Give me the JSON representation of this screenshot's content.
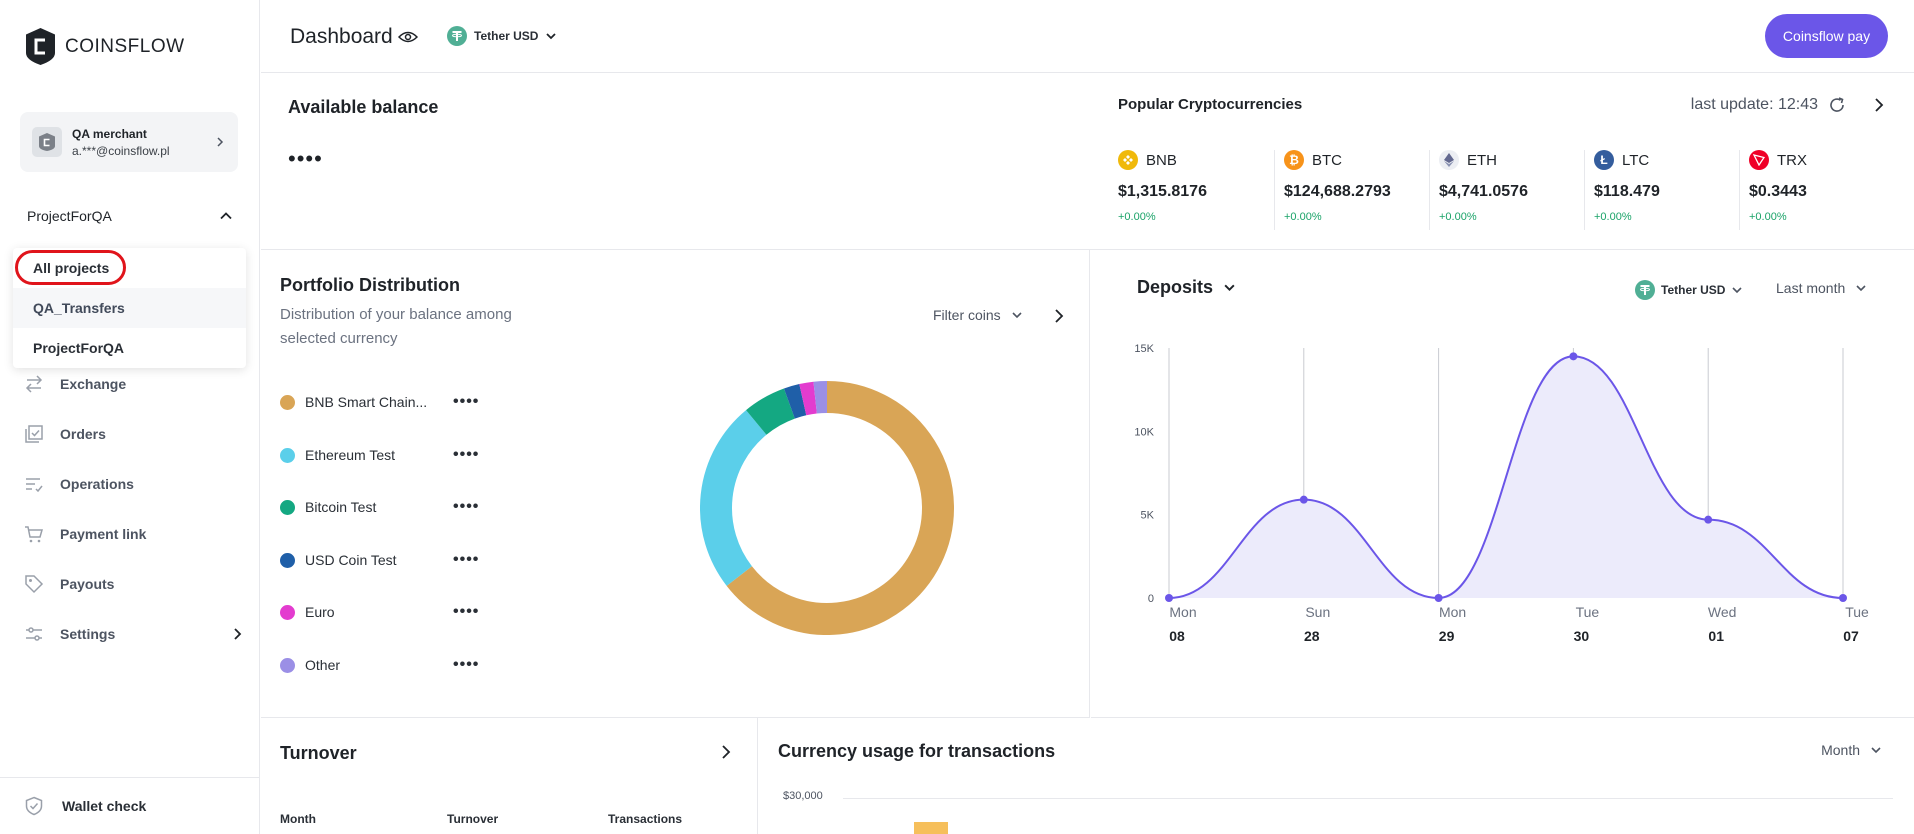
{
  "app": {
    "logo_text": "COINSFLOW"
  },
  "merchant": {
    "name": "QA merchant",
    "email": "a.***@coinsflow.pl"
  },
  "project_selector": {
    "current": "ProjectForQA",
    "options": [
      "All projects",
      "QA_Transfers",
      "ProjectForQA"
    ]
  },
  "nav": {
    "items": [
      {
        "label": "Exchange",
        "icon": "exchange-icon"
      },
      {
        "label": "Orders",
        "icon": "orders-icon"
      },
      {
        "label": "Operations",
        "icon": "operations-icon"
      },
      {
        "label": "Payment link",
        "icon": "cart-icon"
      },
      {
        "label": "Payouts",
        "icon": "tag-icon"
      },
      {
        "label": "Settings",
        "icon": "settings-icon"
      }
    ],
    "wallet_check": "Wallet check"
  },
  "header": {
    "title": "Dashboard",
    "currency": "Tether USD",
    "pay_button": "Coinsflow pay"
  },
  "balance": {
    "title": "Available balance",
    "value": "••••"
  },
  "popular": {
    "title": "Popular Cryptocurrencies",
    "last_update": "last update: 12:43",
    "coins": [
      {
        "symbol": "BNB",
        "price": "$1,315.8176",
        "change": "+0.00%",
        "color": "#f0b90b"
      },
      {
        "symbol": "BTC",
        "price": "$124,688.2793",
        "change": "+0.00%",
        "color": "#f7931a"
      },
      {
        "symbol": "ETH",
        "price": "$4,741.0576",
        "change": "+0.00%",
        "color": "#62688f"
      },
      {
        "symbol": "LTC",
        "price": "$118.479",
        "change": "+0.00%",
        "color": "#345d9d"
      },
      {
        "symbol": "TRX",
        "price": "$0.3443",
        "change": "+0.00%",
        "color": "#ef0027"
      }
    ]
  },
  "portfolio": {
    "title": "Portfolio Distribution",
    "subtitle": "Distribution of your balance among selected currency",
    "filter_label": "Filter coins",
    "legend": [
      {
        "name": "BNB Smart Chain...",
        "value": "••••",
        "color": "#d9a556"
      },
      {
        "name": "Ethereum Test",
        "value": "••••",
        "color": "#5bcfea"
      },
      {
        "name": "Bitcoin Test",
        "value": "••••",
        "color": "#14a882"
      },
      {
        "name": "USD Coin Test",
        "value": "••••",
        "color": "#1f5fa8"
      },
      {
        "name": "Euro",
        "value": "••••",
        "color": "#e33ccf"
      },
      {
        "name": "Other",
        "value": "••••",
        "color": "#9b8fe6"
      }
    ],
    "donut_shares": [
      0.645,
      0.245,
      0.055,
      0.02,
      0.018,
      0.017
    ]
  },
  "deposits": {
    "title": "Deposits",
    "currency": "Tether USD",
    "period": "Last month"
  },
  "chart_data": {
    "type": "area",
    "x_days": [
      "Mon",
      "Sun",
      "Mon",
      "Tue",
      "Wed",
      "Tue"
    ],
    "x_dates": [
      "08",
      "28",
      "29",
      "30",
      "01",
      "07"
    ],
    "y_ticks": [
      "15K",
      "10K",
      "5K",
      "0"
    ],
    "ylim": [
      0,
      15000
    ],
    "values": [
      0,
      5900,
      0,
      14500,
      4700,
      0
    ],
    "colors": {
      "line": "#6b56e8",
      "fill": "#ecebfb"
    }
  },
  "turnover": {
    "title": "Turnover",
    "columns": [
      "Month",
      "Turnover",
      "Transactions"
    ]
  },
  "usage": {
    "title": "Currency usage for transactions",
    "period": "Month",
    "y_tick": "$30,000"
  }
}
